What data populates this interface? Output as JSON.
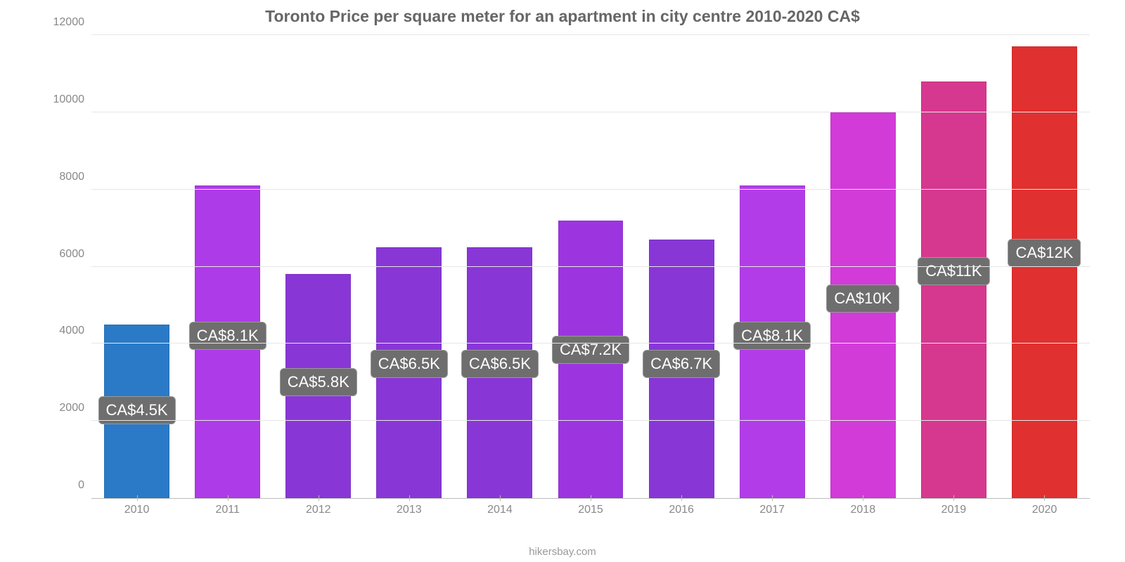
{
  "chart": {
    "type": "bar",
    "title": "Toronto Price per square meter for an apartment in city centre 2010-2020 CA$",
    "title_color": "#666666",
    "title_fontsize": 23,
    "background_color": "#ffffff",
    "grid_color": "#e6e6e6",
    "axis_color": "#bbbbbb",
    "tick_label_color": "#888888",
    "tick_fontsize": 16,
    "ylim": [
      0,
      12000
    ],
    "ytick_step": 2000,
    "yticks": [
      0,
      2000,
      4000,
      6000,
      8000,
      10000,
      12000
    ],
    "bar_width_ratio": 0.72,
    "badge_bg": "#6e6e6e",
    "badge_text_color": "#ffffff",
    "badge_border": "#9a9a9a",
    "badge_fontsize": 22,
    "data": [
      {
        "x": "2010",
        "value": 4500,
        "label": "CA$4.5K",
        "color": "#2a7ac7",
        "badge_bottom_pct": 16
      },
      {
        "x": "2011",
        "value": 8100,
        "label": "CA$8.1K",
        "color": "#ae3be8",
        "badge_bottom_pct": 32
      },
      {
        "x": "2012",
        "value": 5800,
        "label": "CA$5.8K",
        "color": "#8837d6",
        "badge_bottom_pct": 22
      },
      {
        "x": "2013",
        "value": 6500,
        "label": "CA$6.5K",
        "color": "#8837d6",
        "badge_bottom_pct": 26
      },
      {
        "x": "2014",
        "value": 6500,
        "label": "CA$6.5K",
        "color": "#8837d6",
        "badge_bottom_pct": 26
      },
      {
        "x": "2015",
        "value": 7200,
        "label": "CA$7.2K",
        "color": "#9c35e0",
        "badge_bottom_pct": 29
      },
      {
        "x": "2016",
        "value": 6700,
        "label": "CA$6.7K",
        "color": "#8837d6",
        "badge_bottom_pct": 26
      },
      {
        "x": "2017",
        "value": 8100,
        "label": "CA$8.1K",
        "color": "#b23de8",
        "badge_bottom_pct": 32
      },
      {
        "x": "2018",
        "value": 10000,
        "label": "CA$10K",
        "color": "#d23bd8",
        "badge_bottom_pct": 40
      },
      {
        "x": "2019",
        "value": 10800,
        "label": "CA$11K",
        "color": "#d6388f",
        "badge_bottom_pct": 46
      },
      {
        "x": "2020",
        "value": 11700,
        "label": "CA$12K",
        "color": "#e03030",
        "badge_bottom_pct": 50
      }
    ],
    "source_label": "hikersbay.com"
  }
}
